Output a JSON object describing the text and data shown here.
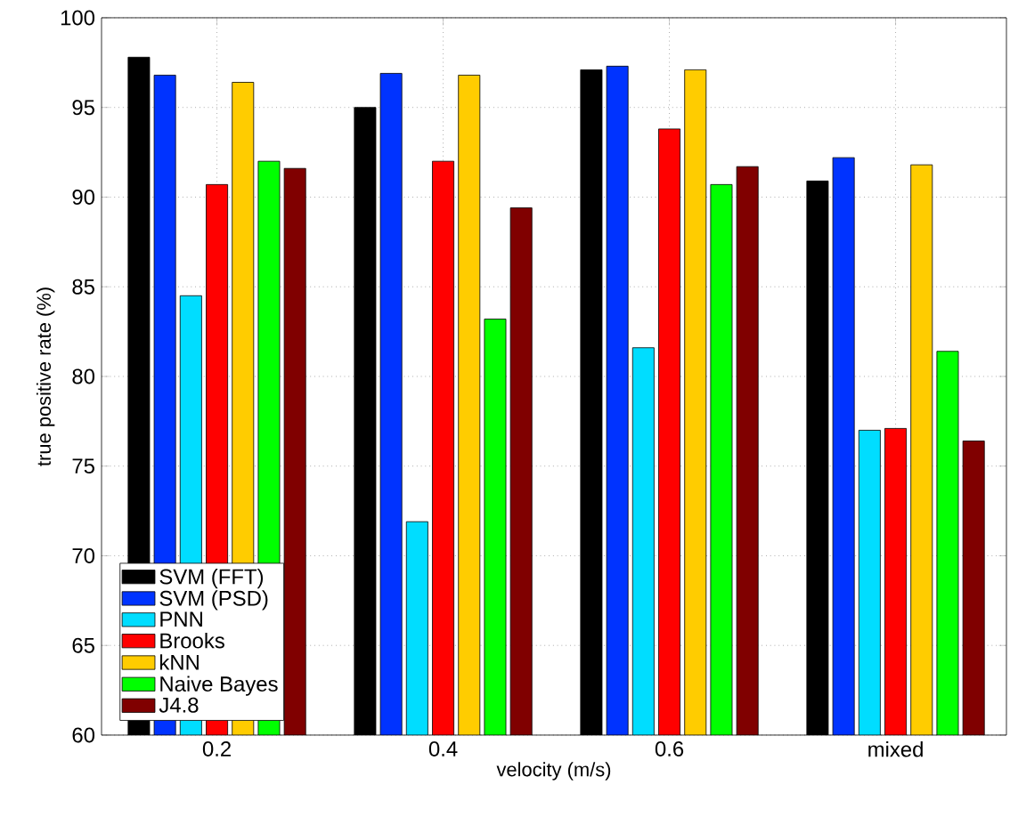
{
  "chart_data": {
    "type": "bar",
    "xlabel": "velocity (m/s)",
    "ylabel": "true positive rate (%)",
    "categories": [
      "0.2",
      "0.4",
      "0.6",
      "mixed"
    ],
    "series": [
      {
        "name": "SVM (FFT)",
        "color": "#000000",
        "values": [
          97.8,
          95.0,
          97.1,
          90.9
        ]
      },
      {
        "name": "SVM (PSD)",
        "color": "#0033ff",
        "values": [
          96.8,
          96.9,
          97.3,
          92.2
        ]
      },
      {
        "name": "PNN",
        "color": "#00ddff",
        "values": [
          84.5,
          71.9,
          81.6,
          77.0
        ]
      },
      {
        "name": "Brooks",
        "color": "#ff0000",
        "values": [
          90.7,
          92.0,
          93.8,
          77.1
        ]
      },
      {
        "name": "kNN",
        "color": "#ffcc00",
        "values": [
          96.4,
          96.8,
          97.1,
          91.8
        ]
      },
      {
        "name": "Naive Bayes",
        "color": "#00ff00",
        "values": [
          92.0,
          83.2,
          90.7,
          81.4
        ]
      },
      {
        "name": "J4.8",
        "color": "#800000",
        "values": [
          91.6,
          89.4,
          91.7,
          76.4
        ]
      }
    ],
    "ylim": [
      60,
      100
    ],
    "yticks": [
      60,
      65,
      70,
      75,
      80,
      85,
      90,
      95,
      100
    ],
    "grid": true,
    "legend": "bottom left"
  }
}
